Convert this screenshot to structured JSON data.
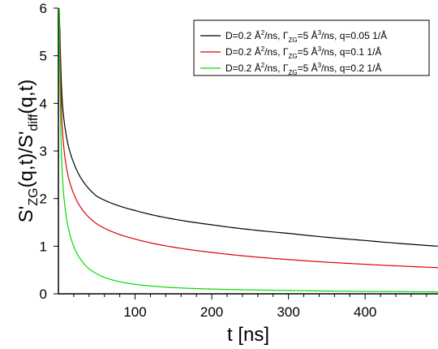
{
  "chart_data": {
    "type": "line",
    "xlabel": "t [ns]",
    "ylabel": "S'ZG(q,t)/S'diff(q,t)",
    "ylabel_parts": {
      "p1": "S'",
      "sub1": "ZG",
      "p2": "(q,t)/S'",
      "sub2": "diff",
      "p3": "(q,t)"
    },
    "xlim": [
      0,
      495
    ],
    "ylim": [
      0,
      6
    ],
    "x_ticks": [
      100,
      200,
      300,
      400
    ],
    "x_tick_labels": [
      "100",
      "200",
      "300",
      "400"
    ],
    "y_ticks": [
      0,
      1,
      2,
      3,
      4,
      5,
      6
    ],
    "y_tick_labels": [
      "0",
      "1",
      "2",
      "3",
      "4",
      "5",
      "6"
    ],
    "grid": false,
    "legend_position": "top-right",
    "series": [
      {
        "name": "D=0.2 Å²/ns, ΓZG=5 Å³/ns, q=0.05 1/Å",
        "legend": {
          "p1": "D=0.2 Å",
          "sup1": "2",
          "p2": "/ns, Γ",
          "sub1": "ZG",
          "p3": "=5 Å",
          "sup2": "3",
          "p4": "/ns, q=0.05 1/Å"
        },
        "color": "#000000",
        "x": [
          1,
          2,
          3,
          5,
          10,
          20,
          50,
          100,
          150,
          200,
          300,
          400,
          495
        ],
        "y": [
          6.0,
          5.5,
          4.85,
          4.05,
          3.35,
          2.75,
          2.05,
          1.75,
          1.57,
          1.45,
          1.27,
          1.12,
          1.0
        ]
      },
      {
        "name": "D=0.2 Å²/ns, ΓZG=5 Å³/ns, q=0.1 1/Å",
        "legend": {
          "p1": "D=0.2 Å",
          "sup1": "2",
          "p2": "/ns, Γ",
          "sub1": "ZG",
          "p3": "=5 Å",
          "sup2": "3",
          "p4": "/ns, q=0.1 1/Å"
        },
        "color": "#e00000",
        "x": [
          1,
          2,
          3,
          5,
          10,
          20,
          50,
          100,
          150,
          200,
          300,
          400,
          495
        ],
        "y": [
          6.0,
          5.2,
          4.35,
          3.5,
          2.7,
          2.1,
          1.47,
          1.15,
          0.98,
          0.87,
          0.72,
          0.62,
          0.55
        ]
      },
      {
        "name": "D=0.2 Å²/ns, ΓZG=5 Å³/ns, q=0.2 1/Å",
        "legend": {
          "p1": "D=0.2 Å",
          "sup1": "2",
          "p2": "/ns, Γ",
          "sub1": "ZG",
          "p3": "=5 Å",
          "sup2": "3",
          "p4": "/ns, q=0.2 1/Å"
        },
        "color": "#00dd00",
        "x": [
          1,
          2,
          3,
          5,
          8,
          10,
          15,
          20,
          30,
          50,
          100,
          150,
          200,
          300,
          400,
          495
        ],
        "y": [
          6.0,
          4.6,
          3.55,
          2.55,
          1.9,
          1.65,
          1.25,
          1.0,
          0.7,
          0.42,
          0.2,
          0.13,
          0.1,
          0.07,
          0.05,
          0.04
        ]
      }
    ]
  }
}
